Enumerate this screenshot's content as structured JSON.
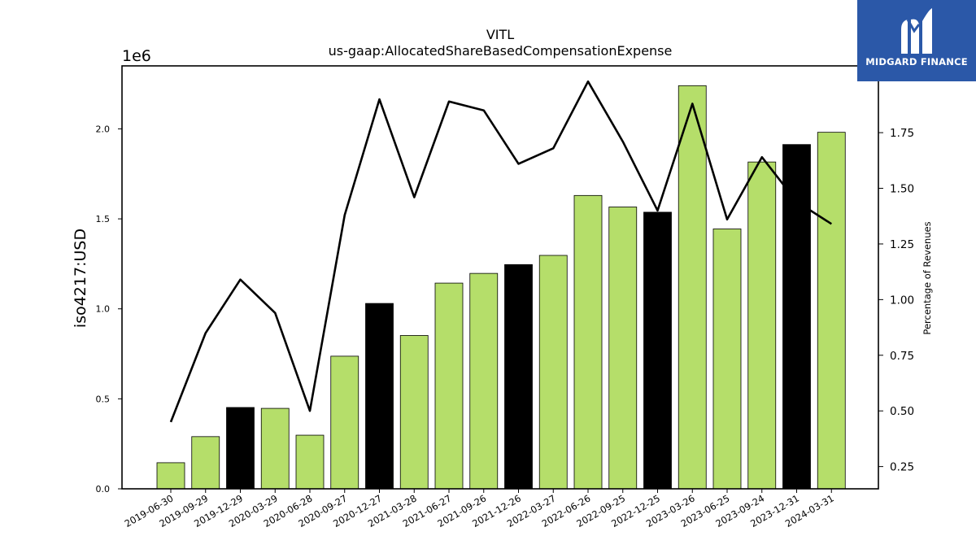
{
  "chart_data": {
    "type": "bar",
    "title": "VITL",
    "subtitle": "us-gaap:AllocatedShareBasedCompensationExpense",
    "ylabel": "iso4217:USD",
    "y_offset_label": "1e6",
    "y2label": "Percentage of Revenues",
    "ylim": [
      0,
      2350000
    ],
    "y2lim": [
      0.15,
      2.05
    ],
    "yticks": [
      0,
      500000,
      1000000,
      1500000,
      2000000
    ],
    "ytick_labels": [
      "0.0",
      "0.5",
      "1.0",
      "1.5",
      "2.0"
    ],
    "y2ticks": [
      0.25,
      0.5,
      0.75,
      1.0,
      1.25,
      1.5,
      1.75
    ],
    "y2tick_labels": [
      "0.25",
      "0.50",
      "0.75",
      "1.00",
      "1.25",
      "1.50",
      "1.75"
    ],
    "categories": [
      "2019-06-30",
      "2019-09-29",
      "2019-12-29",
      "2020-03-29",
      "2020-06-28",
      "2020-09-27",
      "2020-12-27",
      "2021-03-28",
      "2021-06-27",
      "2021-09-26",
      "2021-12-26",
      "2022-03-27",
      "2022-06-26",
      "2022-09-25",
      "2022-12-25",
      "2023-03-26",
      "2023-06-25",
      "2023-09-24",
      "2023-12-31",
      "2024-03-31"
    ],
    "series": [
      {
        "kind": "bar",
        "values": [
          145000,
          290000,
          452000,
          447000,
          298000,
          737000,
          1030000,
          852000,
          1143000,
          1197000,
          1246000,
          1297000,
          1630000,
          1566000,
          1537000,
          2240000,
          1444000,
          1816000,
          1913000,
          1981000
        ],
        "bar_colors": [
          "#b5de6a",
          "#b5de6a",
          "#000000",
          "#b5de6a",
          "#b5de6a",
          "#b5de6a",
          "#000000",
          "#b5de6a",
          "#b5de6a",
          "#b5de6a",
          "#000000",
          "#b5de6a",
          "#b5de6a",
          "#b5de6a",
          "#000000",
          "#b5de6a",
          "#b5de6a",
          "#b5de6a",
          "#000000",
          "#b5de6a"
        ]
      },
      {
        "kind": "line",
        "axis": "right",
        "values": [
          0.45,
          0.85,
          1.09,
          0.94,
          0.5,
          1.38,
          1.9,
          1.46,
          1.89,
          1.85,
          1.61,
          1.68,
          1.98,
          1.71,
          1.4,
          1.88,
          1.36,
          1.64,
          1.44,
          1.34
        ],
        "color": "#000000"
      }
    ],
    "grid": false,
    "legend": "none"
  },
  "logo": {
    "text": "MIDGARD FINANCE",
    "background": "#2b58a8",
    "icon": "midgard-logo-icon"
  }
}
